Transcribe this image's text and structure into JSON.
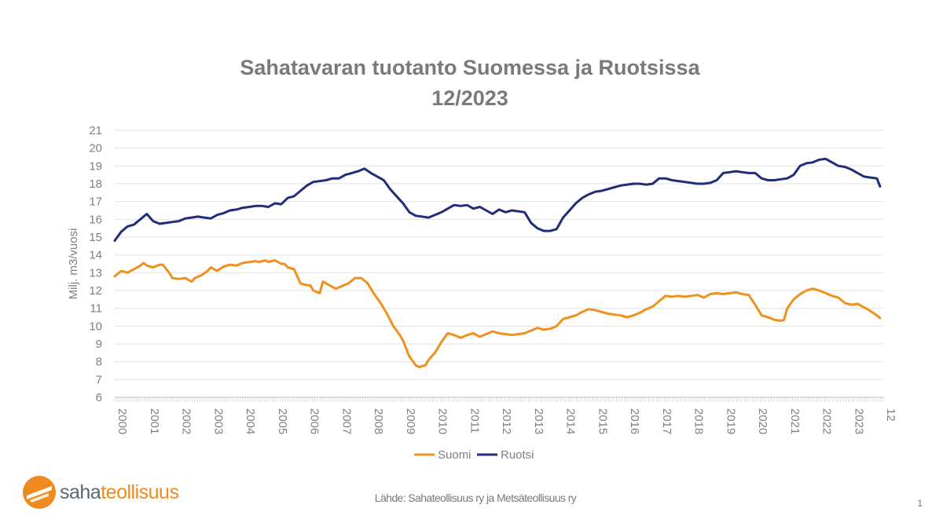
{
  "chart_data": {
    "type": "line",
    "title_line1": "Sahatavaran tuotanto Suomessa ja Ruotsissa",
    "title_line2": "12/2023",
    "ylabel": "Milj. m3/vuosi",
    "xlabel": "",
    "ylim": [
      6,
      21
    ],
    "yticks": [
      "6",
      "7",
      "8",
      "9",
      "10",
      "11",
      "12",
      "13",
      "14",
      "15",
      "16",
      "17",
      "18",
      "19",
      "20",
      "21"
    ],
    "xticks": [
      "2000",
      "2001",
      "2002",
      "2003",
      "2004",
      "2005",
      "2006",
      "2007",
      "2008",
      "2009",
      "2010",
      "2011",
      "2012",
      "2013",
      "2014",
      "2015",
      "2016",
      "2017",
      "2018",
      "2019",
      "2020",
      "2021",
      "2022",
      "2023",
      "12"
    ],
    "grid": "horizontal",
    "legend_position": "bottom-center",
    "series": [
      {
        "name": "Suomi",
        "color": "#f0901e",
        "x": [
          2000.0,
          2000.2,
          2000.4,
          2000.6,
          2000.8,
          2000.9,
          2001.0,
          2001.2,
          2001.4,
          2001.5,
          2001.7,
          2001.8,
          2002.0,
          2002.2,
          2002.4,
          2002.5,
          2002.7,
          2002.9,
          2003.0,
          2003.2,
          2003.4,
          2003.6,
          2003.8,
          2004.0,
          2004.2,
          2004.4,
          2004.5,
          2004.7,
          2004.8,
          2005.0,
          2005.2,
          2005.3,
          2005.4,
          2005.6,
          2005.8,
          2005.9,
          2006.0,
          2006.1,
          2006.2,
          2006.4,
          2006.5,
          2006.7,
          2006.9,
          2007.1,
          2007.3,
          2007.5,
          2007.7,
          2007.9,
          2008.1,
          2008.3,
          2008.5,
          2008.7,
          2008.9,
          2009.0,
          2009.2,
          2009.4,
          2009.5,
          2009.7,
          2009.8,
          2010.0,
          2010.2,
          2010.4,
          2010.6,
          2010.8,
          2011.0,
          2011.2,
          2011.4,
          2011.6,
          2011.8,
          2012.0,
          2012.2,
          2012.4,
          2012.6,
          2012.8,
          2013.0,
          2013.2,
          2013.4,
          2013.6,
          2013.8,
          2014.0,
          2014.2,
          2014.4,
          2014.6,
          2014.8,
          2015.0,
          2015.2,
          2015.4,
          2015.6,
          2015.8,
          2016.0,
          2016.2,
          2016.4,
          2016.6,
          2016.8,
          2017.0,
          2017.2,
          2017.4,
          2017.6,
          2017.8,
          2018.0,
          2018.2,
          2018.4,
          2018.6,
          2018.8,
          2019.0,
          2019.2,
          2019.4,
          2019.6,
          2019.8,
          2020.0,
          2020.2,
          2020.4,
          2020.6,
          2020.8,
          2020.9,
          2021.0,
          2021.2,
          2021.4,
          2021.6,
          2021.8,
          2022.0,
          2022.2,
          2022.4,
          2022.6,
          2022.8,
          2023.0,
          2023.2,
          2023.4,
          2023.6,
          2023.8,
          2023.9
        ],
        "values": [
          12.8,
          13.1,
          13.0,
          13.2,
          13.4,
          13.55,
          13.4,
          13.3,
          13.45,
          13.45,
          13.0,
          12.7,
          12.65,
          12.7,
          12.5,
          12.7,
          12.85,
          13.1,
          13.3,
          13.1,
          13.35,
          13.45,
          13.4,
          13.55,
          13.6,
          13.65,
          13.6,
          13.7,
          13.6,
          13.7,
          13.5,
          13.5,
          13.3,
          13.2,
          12.4,
          12.35,
          12.3,
          12.3,
          12.0,
          11.85,
          12.5,
          12.3,
          12.1,
          12.25,
          12.4,
          12.7,
          12.7,
          12.4,
          11.8,
          11.3,
          10.7,
          10.0,
          9.5,
          9.2,
          8.3,
          7.8,
          7.7,
          7.8,
          8.1,
          8.5,
          9.1,
          9.6,
          9.5,
          9.35,
          9.5,
          9.6,
          9.4,
          9.55,
          9.7,
          9.6,
          9.55,
          9.5,
          9.55,
          9.6,
          9.75,
          9.9,
          9.8,
          9.85,
          10.0,
          10.4,
          10.5,
          10.6,
          10.8,
          10.95,
          10.9,
          10.8,
          10.7,
          10.65,
          10.6,
          10.5,
          10.6,
          10.75,
          10.95,
          11.1,
          11.4,
          11.7,
          11.65,
          11.7,
          11.65,
          11.7,
          11.75,
          11.6,
          11.8,
          11.85,
          11.8,
          11.85,
          11.9,
          11.8,
          11.75,
          11.2,
          10.6,
          10.5,
          10.35,
          10.3,
          10.35,
          11.0,
          11.5,
          11.8,
          12.0,
          12.1,
          12.0,
          11.85,
          11.7,
          11.6,
          11.3,
          11.2,
          11.25,
          11.05,
          10.85,
          10.6,
          10.45
        ]
      },
      {
        "name": "Ruotsi",
        "color": "#1f2d7a",
        "x": [
          2000.0,
          2000.2,
          2000.4,
          2000.6,
          2000.8,
          2001.0,
          2001.2,
          2001.4,
          2001.6,
          2001.8,
          2002.0,
          2002.2,
          2002.4,
          2002.6,
          2002.8,
          2003.0,
          2003.2,
          2003.4,
          2003.6,
          2003.8,
          2004.0,
          2004.2,
          2004.4,
          2004.6,
          2004.8,
          2005.0,
          2005.2,
          2005.4,
          2005.6,
          2005.8,
          2006.0,
          2006.2,
          2006.4,
          2006.6,
          2006.8,
          2007.0,
          2007.2,
          2007.4,
          2007.6,
          2007.8,
          2008.0,
          2008.2,
          2008.4,
          2008.6,
          2008.8,
          2009.0,
          2009.2,
          2009.4,
          2009.6,
          2009.8,
          2010.0,
          2010.2,
          2010.4,
          2010.6,
          2010.8,
          2011.0,
          2011.2,
          2011.4,
          2011.6,
          2011.8,
          2012.0,
          2012.2,
          2012.4,
          2012.6,
          2012.8,
          2013.0,
          2013.1,
          2013.2,
          2013.4,
          2013.6,
          2013.8,
          2014.0,
          2014.2,
          2014.4,
          2014.6,
          2014.8,
          2015.0,
          2015.2,
          2015.4,
          2015.6,
          2015.8,
          2016.0,
          2016.2,
          2016.4,
          2016.6,
          2016.8,
          2017.0,
          2017.2,
          2017.4,
          2017.6,
          2017.8,
          2018.0,
          2018.2,
          2018.4,
          2018.6,
          2018.8,
          2019.0,
          2019.2,
          2019.4,
          2019.6,
          2019.8,
          2020.0,
          2020.2,
          2020.4,
          2020.6,
          2020.8,
          2021.0,
          2021.2,
          2021.4,
          2021.6,
          2021.8,
          2022.0,
          2022.2,
          2022.4,
          2022.6,
          2022.8,
          2023.0,
          2023.2,
          2023.4,
          2023.6,
          2023.8,
          2023.9
        ],
        "values": [
          14.8,
          15.3,
          15.6,
          15.7,
          16.0,
          16.3,
          15.9,
          15.75,
          15.8,
          15.85,
          15.9,
          16.05,
          16.1,
          16.15,
          16.1,
          16.05,
          16.25,
          16.35,
          16.5,
          16.55,
          16.65,
          16.7,
          16.75,
          16.75,
          16.7,
          16.9,
          16.85,
          17.2,
          17.3,
          17.6,
          17.9,
          18.1,
          18.15,
          18.2,
          18.3,
          18.3,
          18.5,
          18.6,
          18.7,
          18.85,
          18.6,
          18.4,
          18.2,
          17.7,
          17.3,
          16.9,
          16.4,
          16.2,
          16.15,
          16.1,
          16.25,
          16.4,
          16.6,
          16.8,
          16.75,
          16.8,
          16.6,
          16.7,
          16.5,
          16.3,
          16.55,
          16.4,
          16.5,
          16.45,
          16.4,
          15.8,
          15.65,
          15.5,
          15.35,
          15.35,
          15.45,
          16.1,
          16.5,
          16.9,
          17.2,
          17.4,
          17.55,
          17.6,
          17.7,
          17.8,
          17.9,
          17.95,
          18.0,
          18.0,
          17.95,
          18.0,
          18.3,
          18.3,
          18.2,
          18.15,
          18.1,
          18.05,
          18.0,
          18.0,
          18.05,
          18.2,
          18.6,
          18.65,
          18.7,
          18.65,
          18.6,
          18.6,
          18.3,
          18.2,
          18.2,
          18.25,
          18.3,
          18.5,
          19.0,
          19.15,
          19.2,
          19.35,
          19.4,
          19.2,
          19.0,
          18.95,
          18.8,
          18.6,
          18.4,
          18.35,
          18.3,
          17.85
        ]
      }
    ]
  },
  "footer": {
    "logo_part1": "saha",
    "logo_part2": "teollisuus",
    "source": "Lähde: Sahateollisuus ry ja Metsäteollisuus ry",
    "page_number": "1"
  }
}
